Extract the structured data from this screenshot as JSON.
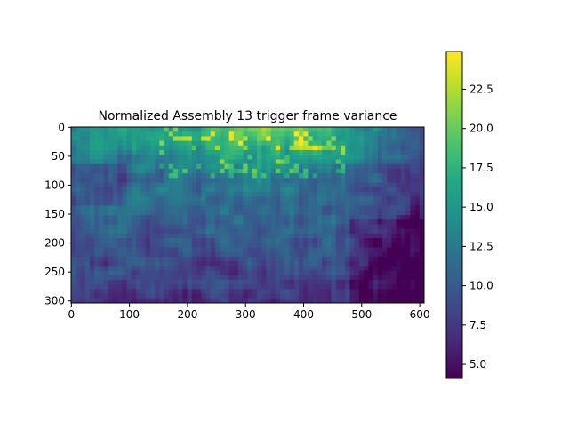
{
  "chart_data": {
    "type": "heatmap",
    "title": "Normalized Assembly 13 trigger frame variance",
    "colormap": "viridis",
    "image_width": 608,
    "image_height": 304,
    "x_ticks": [
      0,
      100,
      200,
      300,
      400,
      500,
      600
    ],
    "y_ticks": [
      0,
      50,
      100,
      150,
      200,
      250,
      300
    ],
    "colorbar": {
      "min": 4.1,
      "max": 24.9,
      "ticks": [
        5.0,
        7.5,
        10.0,
        12.5,
        15.0,
        17.5,
        20.0,
        22.5
      ],
      "tick_labels": [
        "5.0",
        "7.5",
        "10.0",
        "12.5",
        "15.0",
        "17.5",
        "20.0",
        "22.5"
      ]
    },
    "xlabel": "",
    "ylabel": "",
    "grid": false,
    "description_regions": [
      {
        "label": "bright upper band",
        "x_range": [
          150,
          480
        ],
        "y_range": [
          0,
          100
        ],
        "level": 19
      },
      {
        "label": "dark lower-right",
        "x_range": [
          480,
          608
        ],
        "y_range": [
          200,
          304
        ],
        "level": 5
      },
      {
        "label": "dark lower-left",
        "x_range": [
          0,
          200
        ],
        "y_range": [
          250,
          304
        ],
        "level": 6
      }
    ]
  }
}
